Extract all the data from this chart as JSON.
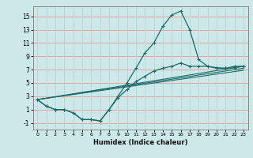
{
  "xlabel": "Humidex (Indice chaleur)",
  "bg_color": "#cce8e8",
  "grid_color_h": "#e8a0a0",
  "grid_color_v": "#b8d8d8",
  "line_color": "#1a6b6b",
  "xlim": [
    -0.5,
    23.5
  ],
  "ylim": [
    -2.0,
    16.5
  ],
  "yticks": [
    -1,
    1,
    3,
    5,
    7,
    9,
    11,
    13,
    15
  ],
  "xticks": [
    0,
    1,
    2,
    3,
    4,
    5,
    6,
    7,
    8,
    9,
    10,
    11,
    12,
    13,
    14,
    15,
    16,
    17,
    18,
    19,
    20,
    21,
    22,
    23
  ],
  "curve1_x": [
    0,
    1,
    2,
    3,
    4,
    5,
    6,
    7,
    8,
    9,
    10,
    11,
    12,
    13,
    14,
    15,
    16,
    17,
    18,
    19,
    20,
    21,
    22,
    23
  ],
  "curve1_y": [
    2.5,
    1.5,
    1.0,
    1.0,
    0.5,
    -0.5,
    -0.5,
    -0.7,
    1.0,
    3.0,
    5.0,
    7.2,
    9.5,
    11.0,
    13.5,
    15.2,
    15.8,
    13.0,
    8.5,
    7.5,
    7.2,
    7.2,
    7.5,
    7.5
  ],
  "curve2_x": [
    0,
    1,
    2,
    3,
    4,
    5,
    6,
    7,
    8,
    9,
    10,
    11,
    12,
    13,
    14,
    15,
    16,
    17,
    18,
    19,
    20,
    21,
    22,
    23
  ],
  "curve2_y": [
    2.5,
    1.5,
    1.0,
    1.0,
    0.5,
    -0.5,
    -0.5,
    -0.7,
    1.0,
    2.8,
    4.0,
    5.2,
    6.0,
    6.8,
    7.2,
    7.5,
    8.0,
    7.5,
    7.5,
    7.5,
    7.3,
    7.2,
    7.3,
    7.5
  ],
  "straight_lines": [
    {
      "x": [
        0,
        23
      ],
      "y": [
        2.5,
        7.5
      ]
    },
    {
      "x": [
        0,
        23
      ],
      "y": [
        2.5,
        7.2
      ]
    },
    {
      "x": [
        0,
        23
      ],
      "y": [
        2.5,
        6.9
      ]
    }
  ]
}
